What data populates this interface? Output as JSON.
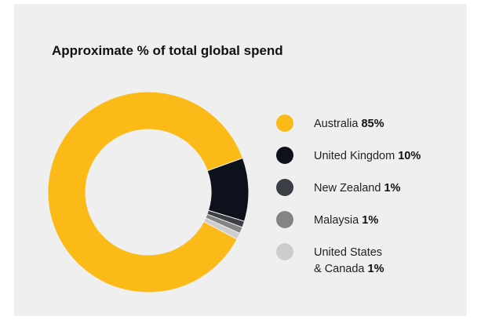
{
  "chart_data": {
    "type": "pie",
    "title": "Approximate % of total global spend",
    "donut": true,
    "legend_position": "right",
    "slices": [
      {
        "label": "Australia",
        "label_lines": [
          "Australia"
        ],
        "value": 85,
        "value_label": "85%",
        "color": "#FBBA17"
      },
      {
        "label": "United Kingdom",
        "label_lines": [
          "United Kingdom"
        ],
        "value": 10,
        "value_label": "10%",
        "color": "#0C111C"
      },
      {
        "label": "New Zealand",
        "label_lines": [
          "New Zealand"
        ],
        "value": 1,
        "value_label": "1%",
        "color": "#3B3E45"
      },
      {
        "label": "Malaysia",
        "label_lines": [
          "Malaysia"
        ],
        "value": 1,
        "value_label": "1%",
        "color": "#848484"
      },
      {
        "label": "United States & Canada",
        "label_lines": [
          "United States",
          "& Canada"
        ],
        "value": 1,
        "value_label": "1%",
        "color": "#CDCDCD"
      }
    ]
  }
}
